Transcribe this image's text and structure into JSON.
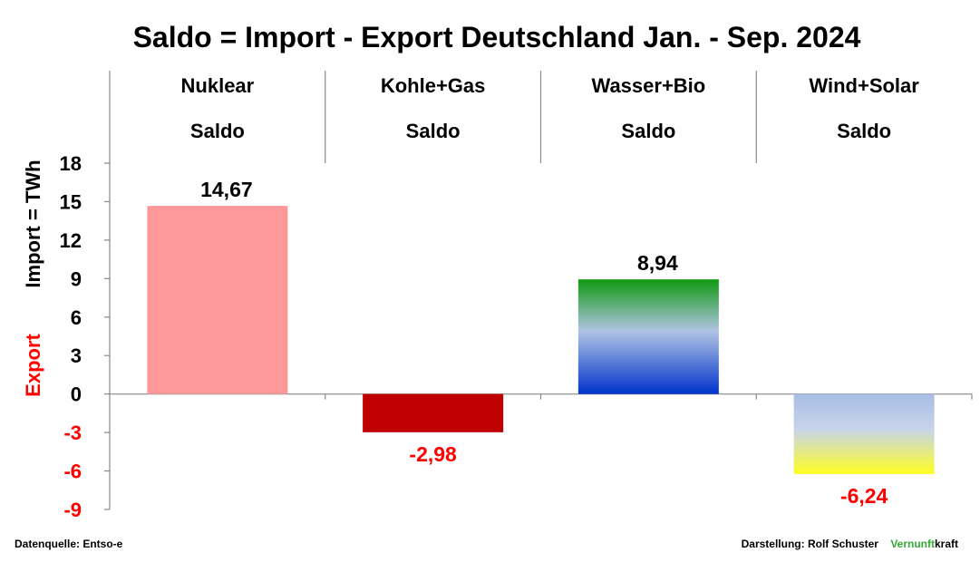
{
  "chart_data": {
    "type": "bar",
    "title": "Saldo = Import - Export Deutschland Jan. - Sep. 2024",
    "categories": [
      "Nuklear",
      "Kohle+Gas",
      "Wasser+Bio",
      "Wind+Solar"
    ],
    "category_sublabel": "Saldo",
    "values": [
      14.67,
      -2.98,
      8.94,
      -6.24
    ],
    "value_labels": [
      "14,67",
      "-2,98",
      "8,94",
      "-6,24"
    ],
    "ylabel_top": "Import =  TWh",
    "ylabel_bottom": "Export",
    "ylim": [
      -9,
      18
    ],
    "yticks": [
      18,
      15,
      12,
      9,
      6,
      3,
      0,
      -3,
      -6,
      -9
    ],
    "grid": false,
    "colors": {
      "positive_label": "#000000",
      "negative_label": "#ff0000",
      "nuklear": "#ff9999",
      "kohle_gas": "#c00000",
      "wasser_bio_top": "#109910",
      "wasser_bio_mid": "#b0c4e4",
      "wasser_bio_bottom": "#0033cc",
      "wind_solar_top": "#a8bde6",
      "wind_solar_bottom": "#ffff22"
    }
  },
  "footer": {
    "source": "Datenquelle: Entso-e",
    "credit_prefix": "Darstellung:  Rolf Schuster",
    "credit_brand_green": "Vernunft",
    "credit_brand_black": "kraft"
  }
}
